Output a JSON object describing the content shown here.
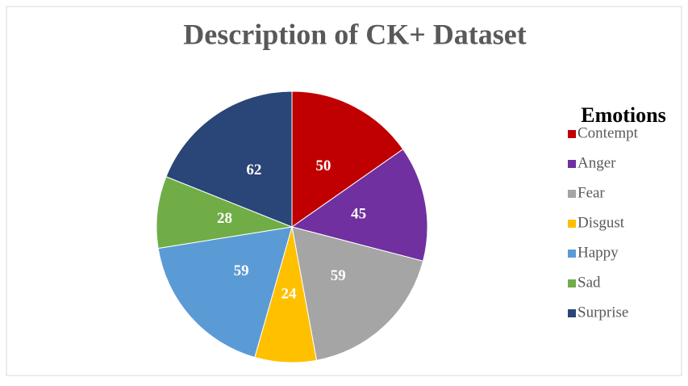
{
  "chart_data": {
    "type": "pie",
    "title": "Description of CK+ Dataset",
    "legend_title": "Emotions",
    "categories": [
      "Contempt",
      "Anger",
      "Fear",
      "Disgust",
      "Happy",
      "Sad",
      "Surprise"
    ],
    "values": [
      50,
      45,
      59,
      24,
      59,
      28,
      62
    ],
    "colors": [
      "#c00000",
      "#7030a0",
      "#a5a5a5",
      "#ffc000",
      "#5b9bd5",
      "#70ad47",
      "#2a4577"
    ],
    "legend": "right"
  }
}
